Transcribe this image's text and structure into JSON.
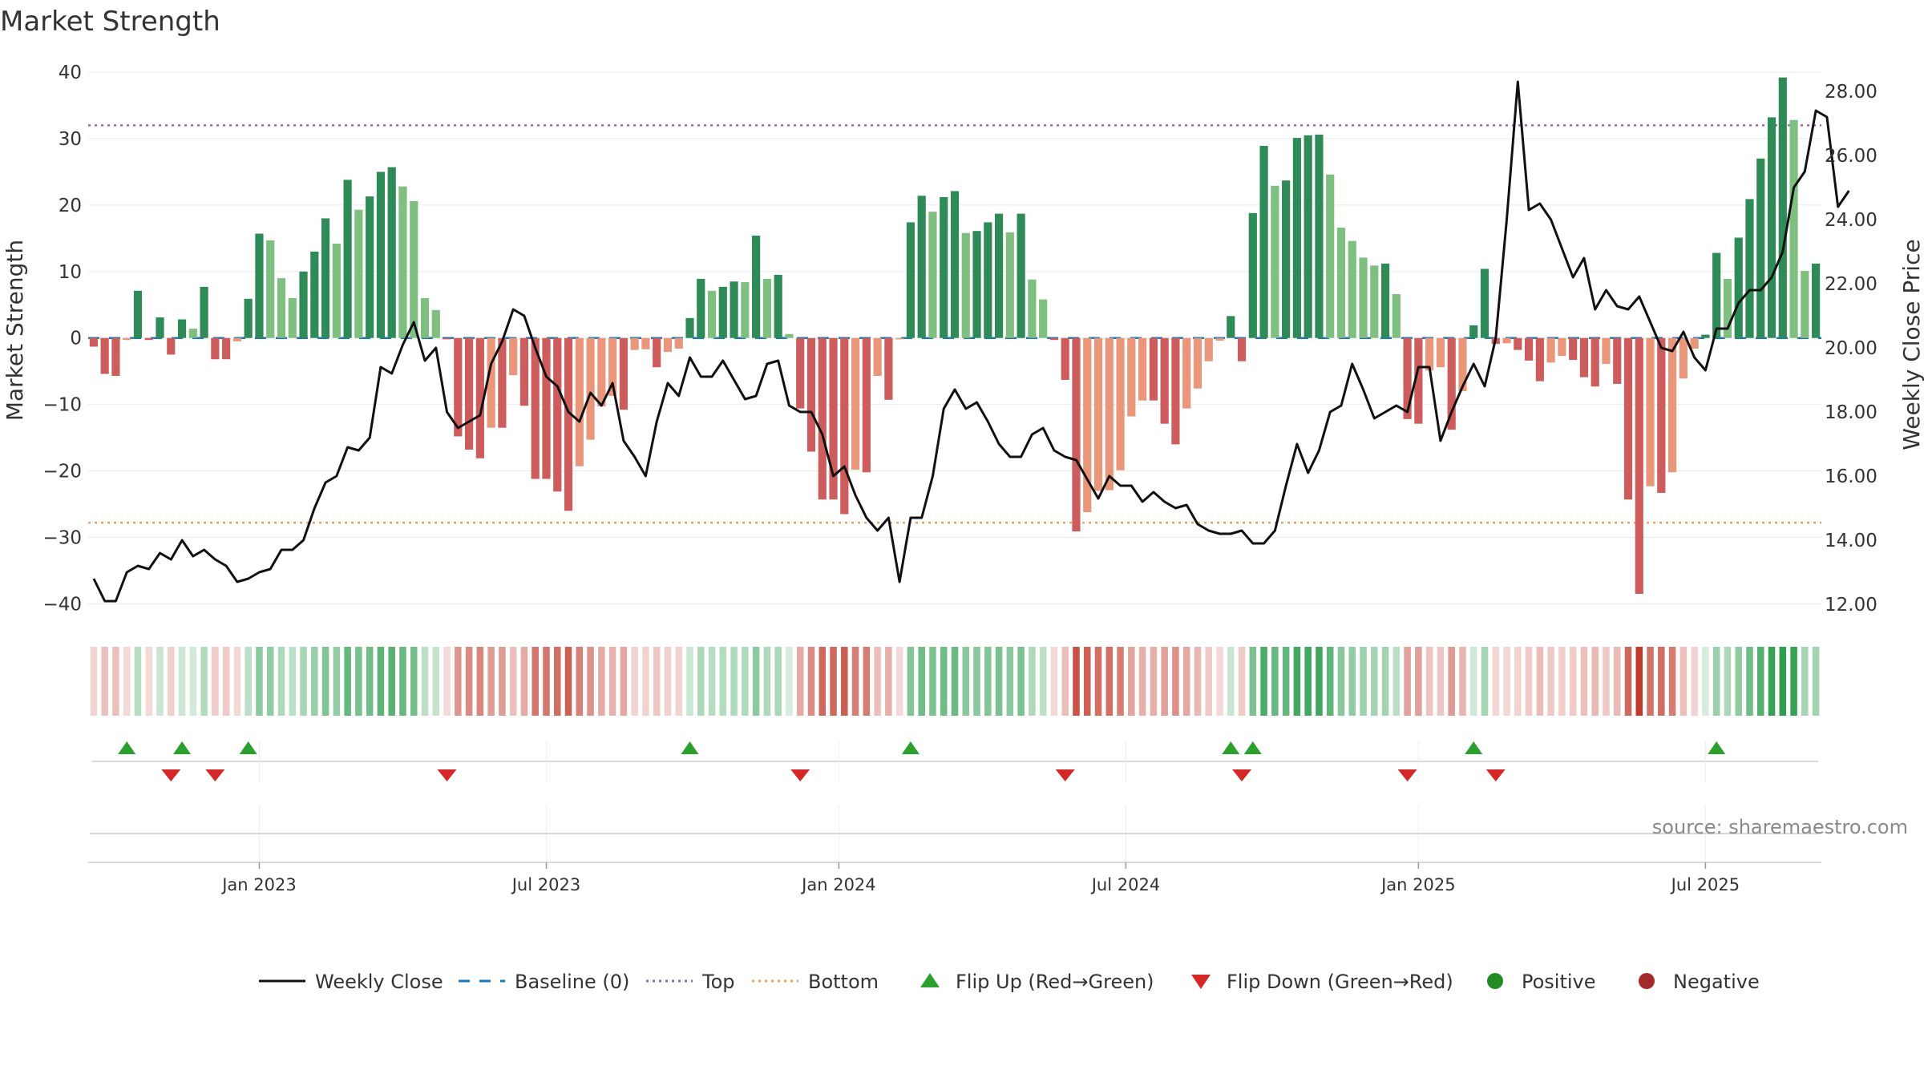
{
  "chart_data": {
    "type": "bar+line",
    "title": "Market Strength",
    "ylabel_left": "Market Strength",
    "ylabel_right": "Weekly Close Price",
    "ylim_left": [
      -42,
      40
    ],
    "ylim_right": [
      11.6,
      28.6
    ],
    "yticks_left": [
      40,
      30,
      20,
      10,
      0,
      -10,
      -20,
      -30,
      -40
    ],
    "yticks_left_labels": [
      "40",
      "30",
      "20",
      "10",
      "0",
      "−10",
      "−20",
      "−30",
      "−40"
    ],
    "yticks_right": [
      28,
      26,
      24,
      22,
      20,
      18,
      16,
      14,
      12
    ],
    "yticks_right_labels": [
      "28.00",
      "26.00",
      "24.00",
      "22.00",
      "20.00",
      "18.00",
      "16.00",
      "14.00",
      "12.00"
    ],
    "top_line": 32,
    "bottom_line": -27.8,
    "x_labels": [
      {
        "idx": 15,
        "label": "Jan 2023"
      },
      {
        "idx": 41,
        "label": "Jul 2023"
      },
      {
        "idx": 67.5,
        "label": "Jan 2024"
      },
      {
        "idx": 93.5,
        "label": "Jul 2024"
      },
      {
        "idx": 120,
        "label": "Jan 2025"
      },
      {
        "idx": 146,
        "label": "Jul 2025"
      }
    ],
    "strength": [
      -1.3,
      -5.4,
      -5.7,
      -0.3,
      7.1,
      -0.3,
      3.1,
      -2.5,
      2.8,
      1.4,
      7.7,
      -3.2,
      -3.2,
      -0.5,
      5.9,
      15.7,
      14.7,
      9.0,
      6.0,
      10.0,
      13.0,
      18.0,
      14.2,
      23.8,
      19.3,
      21.3,
      25.0,
      25.7,
      22.8,
      20.6,
      6.0,
      4.2,
      -0.2,
      -14.8,
      -16.8,
      -18.1,
      -13.5,
      -13.5,
      -5.6,
      -10.2,
      -21.2,
      -21.2,
      -23.1,
      -26.0,
      -19.3,
      -15.3,
      -10.3,
      -8.7,
      -10.8,
      -1.8,
      -1.7,
      -4.4,
      -2.1,
      -1.6,
      3.0,
      8.9,
      7.1,
      7.7,
      8.5,
      8.4,
      15.4,
      8.9,
      9.5,
      0.6,
      -10.6,
      -17.1,
      -24.3,
      -24.3,
      -26.5,
      -19.8,
      -20.2,
      -5.7,
      -9.3,
      -0.2,
      17.4,
      21.4,
      19.0,
      21.2,
      22.1,
      15.8,
      16.1,
      17.4,
      18.7,
      15.9,
      18.7,
      8.8,
      5.8,
      -0.3,
      -6.3,
      -29.1,
      -26.2,
      -23.0,
      -22.9,
      -19.9,
      -11.8,
      -9.4,
      -9.4,
      -12.9,
      -16.0,
      -10.6,
      -7.6,
      -3.5,
      -0.4,
      3.3,
      -3.5,
      18.8,
      28.9,
      22.9,
      23.7,
      30.1,
      30.5,
      30.6,
      24.6,
      16.6,
      14.6,
      12.1,
      10.9,
      11.2,
      6.6,
      -12.2,
      -12.9,
      -4.9,
      -4.4,
      -13.8,
      -8.0,
      1.9,
      10.4,
      -0.9,
      -0.8,
      -1.8,
      -3.4,
      -6.5,
      -3.7,
      -2.7,
      -3.3,
      -5.9,
      -7.3,
      -3.9,
      -6.9,
      -24.3,
      -38.5,
      -22.3,
      -23.3,
      -20.2,
      -6.1,
      -1.6,
      0.5,
      12.8,
      8.9,
      15.1,
      20.9,
      27.0,
      33.2,
      39.2,
      32.8,
      10.1,
      11.2
    ],
    "close": [
      12.8,
      12.1,
      12.1,
      13.0,
      13.2,
      13.1,
      13.6,
      13.4,
      14.0,
      13.5,
      13.7,
      13.4,
      13.2,
      12.7,
      12.8,
      13.0,
      13.1,
      13.7,
      13.7,
      14.0,
      15.0,
      15.8,
      16.0,
      16.9,
      16.8,
      17.2,
      19.4,
      19.2,
      20.1,
      20.8,
      19.6,
      20.0,
      18.0,
      17.5,
      17.7,
      17.9,
      19.5,
      20.2,
      21.2,
      21.0,
      20.0,
      19.1,
      18.8,
      18.0,
      17.7,
      18.6,
      18.2,
      18.9,
      17.1,
      16.6,
      16.0,
      17.7,
      18.9,
      18.5,
      19.7,
      19.1,
      19.1,
      19.6,
      19.0,
      18.4,
      18.5,
      19.5,
      19.6,
      18.2,
      18.0,
      18.0,
      17.3,
      16.0,
      16.3,
      15.4,
      14.7,
      14.3,
      14.7,
      12.7,
      14.7,
      14.7,
      16.0,
      18.1,
      18.7,
      18.1,
      18.3,
      17.7,
      17.0,
      16.6,
      16.6,
      17.3,
      17.5,
      16.8,
      16.6,
      16.5,
      15.9,
      15.3,
      16.0,
      15.7,
      15.7,
      15.2,
      15.5,
      15.2,
      15.0,
      15.1,
      14.5,
      14.3,
      14.2,
      14.2,
      14.3,
      13.9,
      13.9,
      14.3,
      15.7,
      17.0,
      16.1,
      16.8,
      18.0,
      18.2,
      19.5,
      18.7,
      17.8,
      18.0,
      18.2,
      18.0,
      19.4,
      19.4,
      17.1,
      18.0,
      18.8,
      19.5,
      18.8,
      20.3,
      24.0,
      28.3,
      24.3,
      24.5,
      24.0,
      23.1,
      22.2,
      22.8,
      21.2,
      21.8,
      21.3,
      21.2,
      21.6,
      20.8,
      20.0,
      19.9,
      20.5,
      19.7,
      19.3,
      20.6,
      20.6,
      21.4,
      21.8,
      21.8,
      22.2,
      23.0,
      25.0,
      25.5,
      27.4,
      27.2,
      24.4,
      24.9
    ],
    "flips_up": [
      3,
      8,
      14,
      54,
      74,
      103,
      105,
      125,
      147
    ],
    "flips_down": [
      7,
      11,
      32,
      64,
      88,
      104,
      119,
      127
    ],
    "source": "source: sharemaestro.com",
    "colors": {
      "dark_green": "#2e8b57",
      "light_green": "#7fbf7f",
      "dark_red": "#cd5c5c",
      "light_red": "#e9967a",
      "baseline": "#1f77b4",
      "top": "#9467bd",
      "bottom": "#f4a261",
      "flip_up": "#2ca02c",
      "flip_down": "#d62728",
      "positive": "#228b22",
      "negative": "#a52a2a"
    },
    "legend": [
      {
        "kind": "line-solid",
        "label": "Weekly Close"
      },
      {
        "kind": "line-dash",
        "label": "Baseline (0)"
      },
      {
        "kind": "line-dot-top",
        "label": "Top"
      },
      {
        "kind": "line-dot-bottom",
        "label": "Bottom"
      },
      {
        "kind": "tri-up",
        "label": "Flip Up (Red→Green)"
      },
      {
        "kind": "tri-down",
        "label": "Flip Down (Green→Red)"
      },
      {
        "kind": "dot-pos",
        "label": "Positive"
      },
      {
        "kind": "dot-neg",
        "label": "Negative"
      }
    ]
  }
}
